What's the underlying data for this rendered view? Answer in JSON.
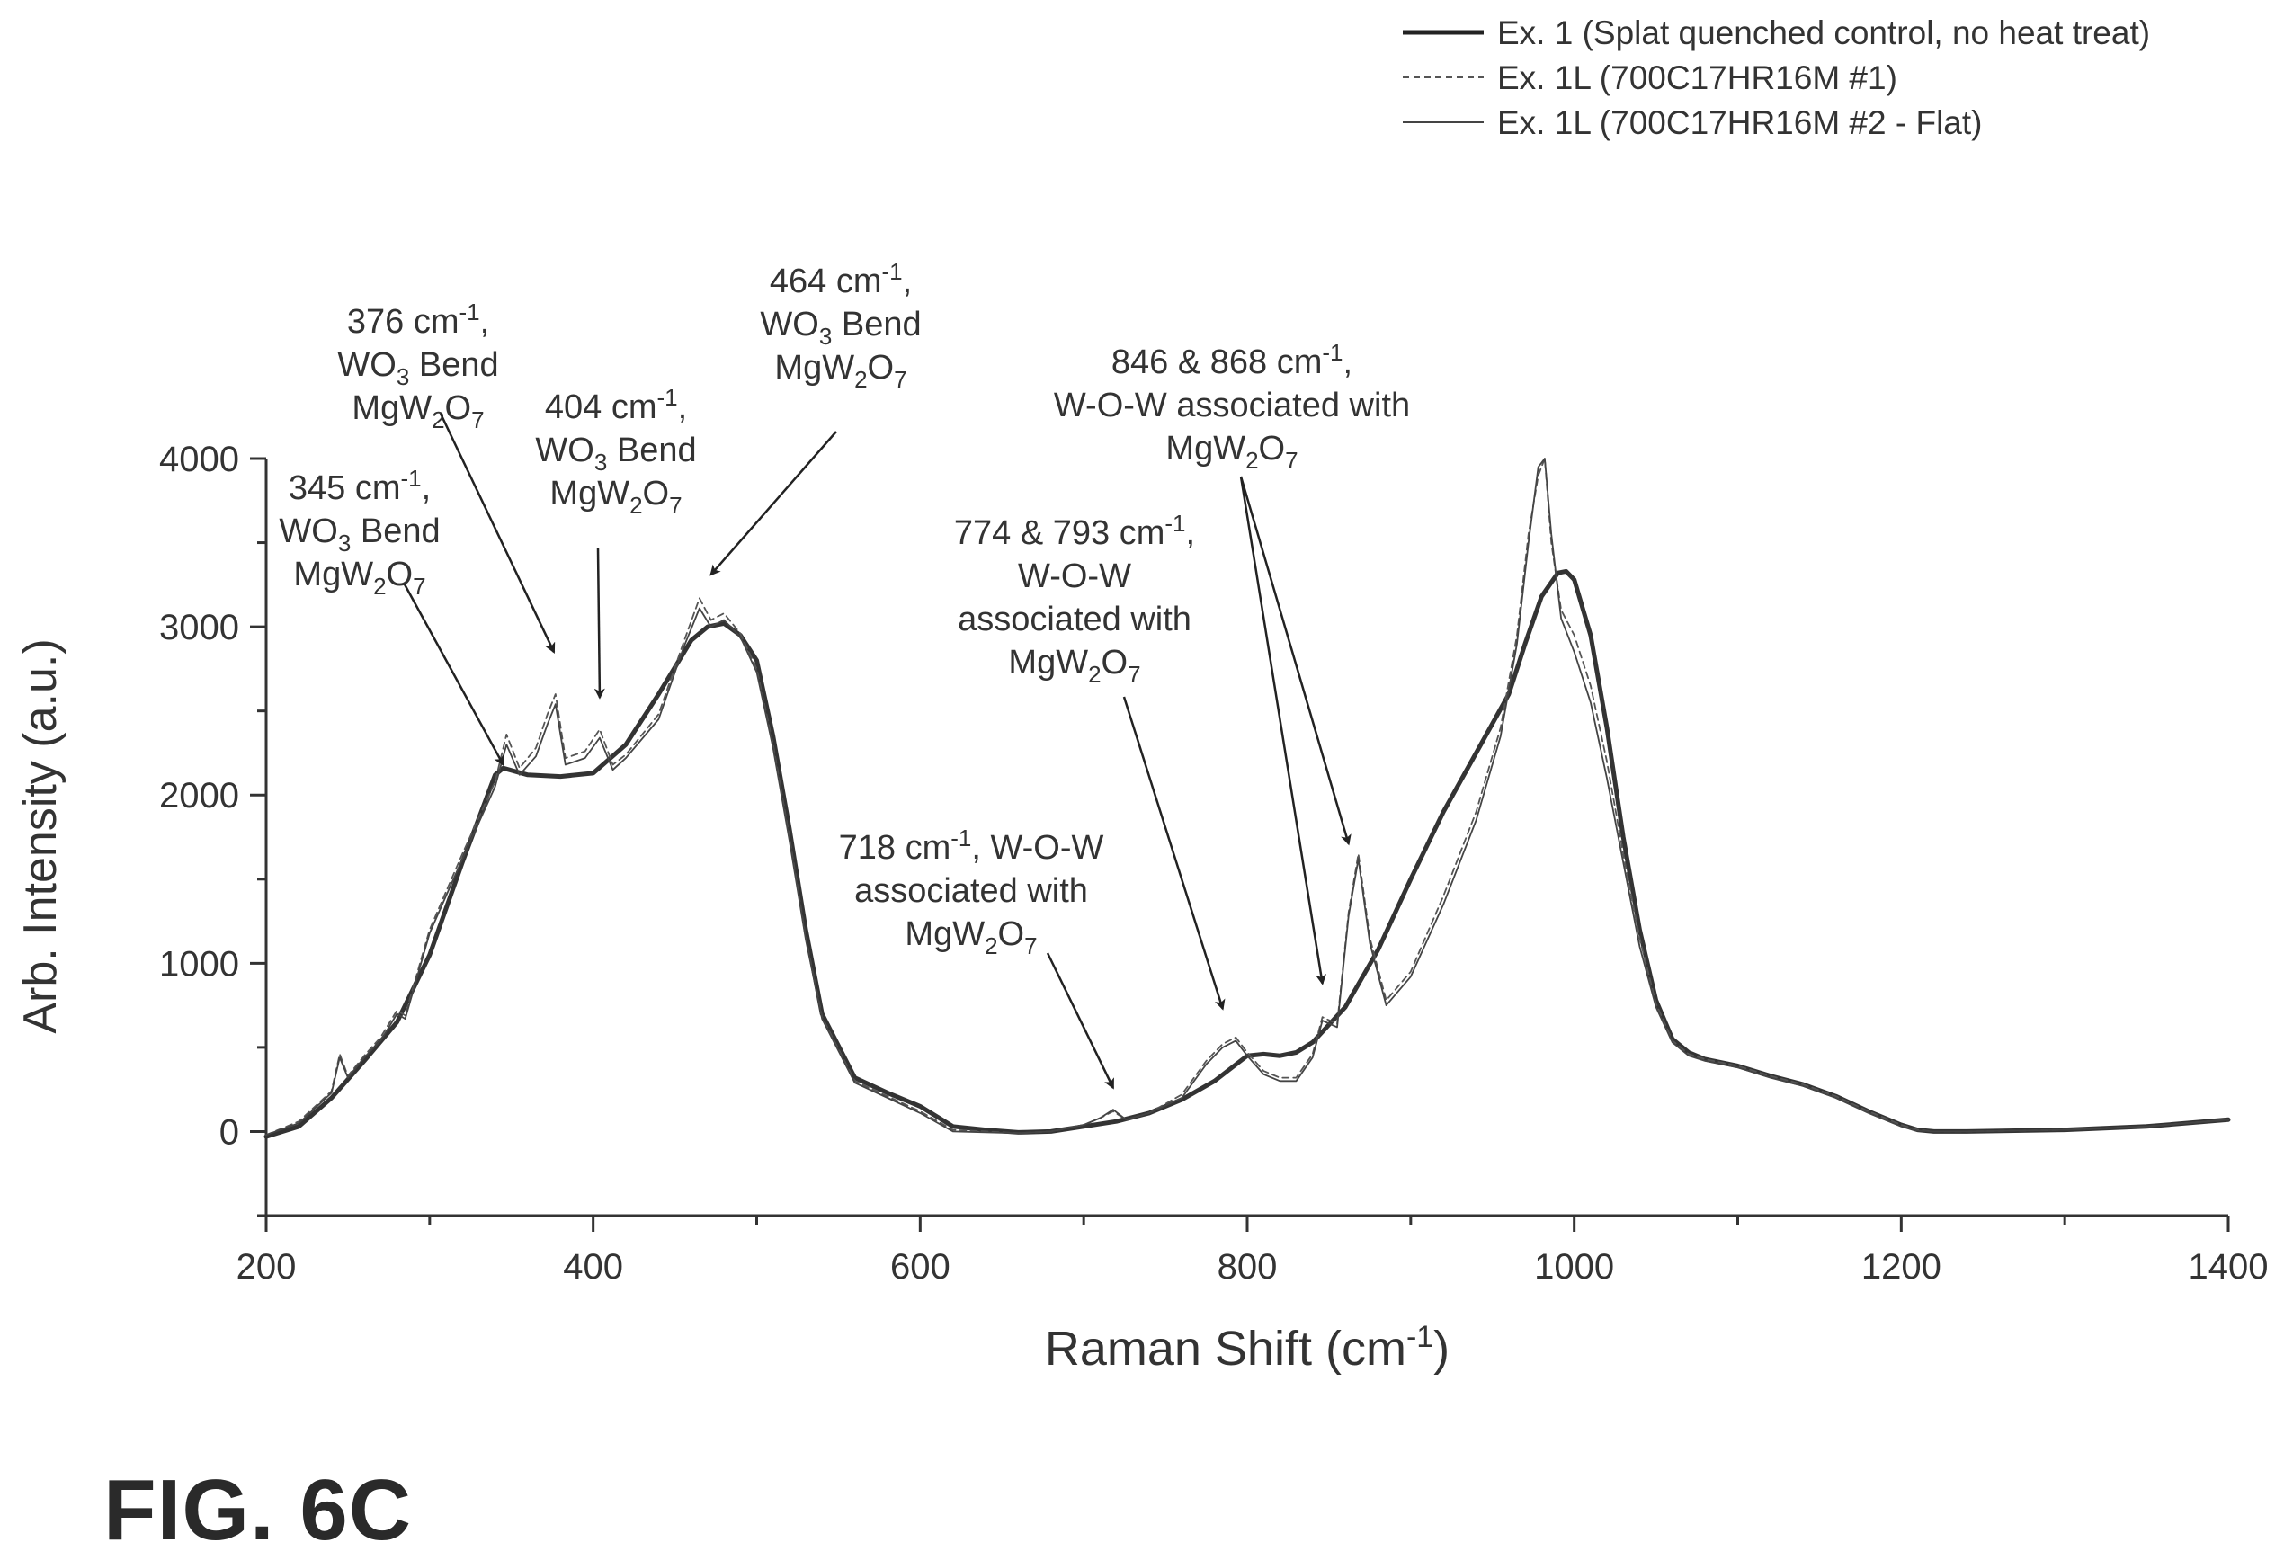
{
  "figure_label": "FIG. 6C",
  "chart_data": {
    "type": "line",
    "xlabel": "Raman Shift (cm",
    "xlabel_sup": "-1",
    "xlabel_end": ")",
    "ylabel": "Arb. Intensity (a.u.)",
    "xlim": [
      200,
      1400
    ],
    "ylim": [
      -500,
      4000
    ],
    "xticks": [
      200,
      400,
      600,
      800,
      1000,
      1200,
      1400
    ],
    "xtick_labels": [
      "200",
      "400",
      "600",
      "800",
      "1000",
      "1200",
      "1400"
    ],
    "yticks": [
      0,
      1000,
      2000,
      3000,
      4000
    ],
    "ytick_labels": [
      "0",
      "1000",
      "2000",
      "3000",
      "4000"
    ],
    "grid": false,
    "legend_position": "top-right",
    "series": [
      {
        "name": "Ex. 1 (Splat quenched control, no heat treat)",
        "style": "thick",
        "color": "#333333",
        "x": [
          200,
          220,
          240,
          260,
          280,
          300,
          320,
          340,
          345,
          360,
          380,
          400,
          420,
          440,
          460,
          470,
          480,
          490,
          500,
          510,
          520,
          530,
          540,
          560,
          580,
          600,
          620,
          640,
          660,
          680,
          700,
          720,
          740,
          760,
          780,
          800,
          810,
          820,
          830,
          840,
          860,
          880,
          900,
          920,
          940,
          960,
          970,
          980,
          990,
          995,
          1000,
          1010,
          1020,
          1030,
          1040,
          1050,
          1060,
          1070,
          1080,
          1100,
          1120,
          1140,
          1160,
          1180,
          1200,
          1210,
          1220,
          1240,
          1300,
          1350,
          1400
        ],
        "y": [
          -30,
          30,
          200,
          420,
          650,
          1050,
          1600,
          2120,
          2160,
          2120,
          2110,
          2130,
          2300,
          2600,
          2920,
          3000,
          3020,
          2950,
          2800,
          2350,
          1800,
          1200,
          700,
          320,
          230,
          150,
          30,
          10,
          -5,
          0,
          30,
          60,
          110,
          190,
          300,
          450,
          460,
          450,
          470,
          530,
          740,
          1080,
          1500,
          1900,
          2250,
          2600,
          2900,
          3180,
          3320,
          3330,
          3280,
          2950,
          2400,
          1750,
          1200,
          780,
          550,
          470,
          430,
          390,
          330,
          280,
          210,
          120,
          40,
          10,
          0,
          0,
          10,
          30,
          70
        ]
      },
      {
        "name": "Ex. 1L (700C17HR16M #1)",
        "style": "dashed",
        "color": "#555555",
        "x": [
          200,
          220,
          240,
          245,
          250,
          260,
          270,
          280,
          285,
          300,
          320,
          340,
          347,
          355,
          365,
          372,
          377,
          383,
          395,
          404,
          412,
          420,
          440,
          455,
          465,
          472,
          480,
          490,
          500,
          510,
          520,
          530,
          540,
          560,
          580,
          600,
          620,
          640,
          660,
          680,
          700,
          710,
          718,
          726,
          740,
          760,
          775,
          785,
          793,
          800,
          810,
          820,
          830,
          840,
          846,
          855,
          862,
          868,
          875,
          885,
          900,
          920,
          940,
          955,
          965,
          972,
          978,
          982,
          986,
          992,
          1000,
          1010,
          1020,
          1030,
          1040,
          1050,
          1060,
          1070,
          1080,
          1100,
          1120,
          1140,
          1160,
          1180,
          1200,
          1210,
          1220,
          1240,
          1300,
          1350,
          1400
        ],
        "y": [
          -20,
          60,
          240,
          460,
          330,
          450,
          560,
          720,
          690,
          1200,
          1650,
          2080,
          2360,
          2160,
          2280,
          2480,
          2600,
          2220,
          2260,
          2390,
          2180,
          2240,
          2480,
          2900,
          3170,
          3040,
          3080,
          2960,
          2750,
          2300,
          1750,
          1150,
          680,
          300,
          210,
          120,
          10,
          0,
          -10,
          0,
          40,
          80,
          120,
          70,
          110,
          220,
          420,
          520,
          560,
          470,
          360,
          320,
          320,
          460,
          680,
          640,
          1300,
          1650,
          1150,
          780,
          950,
          1400,
          1900,
          2400,
          2950,
          3550,
          3900,
          4000,
          3500,
          3100,
          2950,
          2650,
          2200,
          1650,
          1150,
          760,
          540,
          460,
          430,
          390,
          330,
          280,
          210,
          120,
          40,
          10,
          0,
          0,
          10,
          30,
          70
        ]
      },
      {
        "name": "Ex. 1L (700C17HR16M #2 - Flat)",
        "style": "thin",
        "color": "#444444",
        "x": [
          200,
          220,
          240,
          245,
          250,
          260,
          270,
          280,
          285,
          300,
          320,
          340,
          347,
          355,
          365,
          372,
          377,
          383,
          395,
          404,
          412,
          420,
          440,
          455,
          465,
          472,
          480,
          490,
          500,
          510,
          520,
          530,
          540,
          560,
          580,
          600,
          620,
          640,
          660,
          680,
          700,
          710,
          718,
          726,
          740,
          760,
          775,
          785,
          793,
          800,
          810,
          820,
          830,
          840,
          846,
          855,
          862,
          868,
          875,
          885,
          900,
          920,
          940,
          955,
          965,
          972,
          978,
          982,
          986,
          992,
          1000,
          1010,
          1020,
          1030,
          1040,
          1050,
          1060,
          1070,
          1080,
          1100,
          1120,
          1140,
          1160,
          1180,
          1200,
          1210,
          1220,
          1240,
          1300,
          1350,
          1400
        ],
        "y": [
          -20,
          50,
          230,
          440,
          320,
          440,
          540,
          700,
          670,
          1180,
          1620,
          2050,
          2300,
          2120,
          2230,
          2420,
          2540,
          2180,
          2220,
          2340,
          2150,
          2220,
          2450,
          2870,
          3110,
          3000,
          3040,
          2940,
          2730,
          2280,
          1730,
          1140,
          670,
          290,
          200,
          110,
          0,
          -5,
          -10,
          0,
          40,
          80,
          130,
          70,
          110,
          200,
          400,
          500,
          540,
          450,
          340,
          300,
          300,
          440,
          660,
          620,
          1280,
          1620,
          1120,
          750,
          920,
          1350,
          1850,
          2350,
          2900,
          3500,
          3950,
          4000,
          3550,
          3050,
          2850,
          2550,
          2100,
          1600,
          1100,
          740,
          530,
          450,
          420,
          380,
          320,
          270,
          200,
          110,
          30,
          5,
          0,
          0,
          10,
          30,
          70
        ]
      }
    ],
    "annotations": [
      {
        "lines": [
          "345 cm-1,",
          "WO3 Bend",
          "MgW2O7"
        ],
        "target": [
          345,
          2180
        ]
      },
      {
        "lines": [
          "376 cm-1,",
          "WO3 Bend",
          "MgW2O7"
        ],
        "target": [
          376,
          2850
        ]
      },
      {
        "lines": [
          "404 cm-1,",
          "WO3 Bend",
          "MgW2O7"
        ],
        "target": [
          404,
          2580
        ]
      },
      {
        "lines": [
          "464 cm-1,",
          "WO3 Bend",
          "MgW2O7"
        ],
        "target": [
          472,
          3310
        ]
      },
      {
        "lines": [
          "718 cm-1, W-O-W",
          "associated with",
          "MgW2O7"
        ],
        "target": [
          718,
          260
        ]
      },
      {
        "lines": [
          "774 & 793 cm-1,",
          "W-O-W",
          "associated with",
          "MgW2O7"
        ],
        "target": [
          785,
          730
        ]
      },
      {
        "lines": [
          "846 & 868 cm-1,",
          "W-O-W associated with",
          "MgW2O7"
        ],
        "targets": [
          [
            846,
            880
          ],
          [
            862,
            1710
          ]
        ]
      }
    ]
  }
}
